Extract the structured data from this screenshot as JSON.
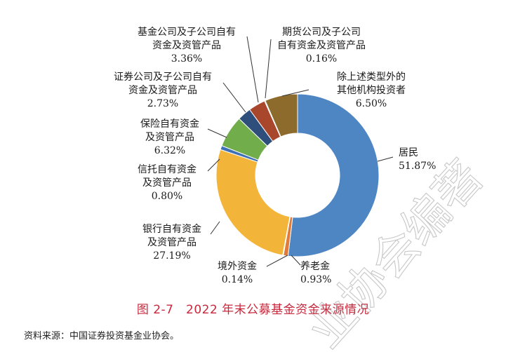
{
  "chart_data": {
    "type": "pie",
    "donut": true,
    "categories": [
      "居民",
      "养老金",
      "境外资金",
      "银行自有资金及资管产品",
      "信托自有资金及资管产品",
      "保险自有资金及资管产品",
      "证券公司及子公司自有资金及资管产品",
      "基金公司及子公司自有资金及资管产品",
      "期货公司及子公司自有资金及资管产品",
      "除上述类型外的其他机构投资者"
    ],
    "values": [
      51.87,
      0.93,
      0.14,
      27.19,
      0.8,
      6.32,
      2.73,
      3.36,
      0.16,
      6.5
    ],
    "colors": [
      "#4e86c4",
      "#e07b3a",
      "#a9a9a9",
      "#f3b43a",
      "#3f6fb5",
      "#72ad4c",
      "#2e4f7b",
      "#a8472b",
      "#6a6a6a",
      "#8c6b2c"
    ],
    "labels": [
      {
        "lines": [
          "居民"
        ],
        "value": "51.87%"
      },
      {
        "lines": [
          "养老金"
        ],
        "value": "0.93%"
      },
      {
        "lines": [
          "境外资金"
        ],
        "value": "0.14%"
      },
      {
        "lines": [
          "银行自有资金",
          "及资管产品"
        ],
        "value": "27.19%"
      },
      {
        "lines": [
          "信托自有资金",
          "及资管产品"
        ],
        "value": "0.80%"
      },
      {
        "lines": [
          "保险自有资金",
          "及资管产品"
        ],
        "value": "6.32%"
      },
      {
        "lines": [
          "证券公司及子公司自有",
          "资金及资管产品"
        ],
        "value": "2.73%"
      },
      {
        "lines": [
          "基金公司及子公司自有",
          "资金及资管产品"
        ],
        "value": "3.36%"
      },
      {
        "lines": [
          "期货公司及子公司",
          "自有资金及资管产品"
        ],
        "value": "0.16%"
      },
      {
        "lines": [
          "除上述类型外的",
          "其他机构投资者"
        ],
        "value": "6.50%"
      }
    ]
  },
  "caption": "图 2-7　2022 年末公募基金资金来源情况",
  "source": "资料来源：中国证券投资基金业协会。",
  "watermark": "业协会编著"
}
